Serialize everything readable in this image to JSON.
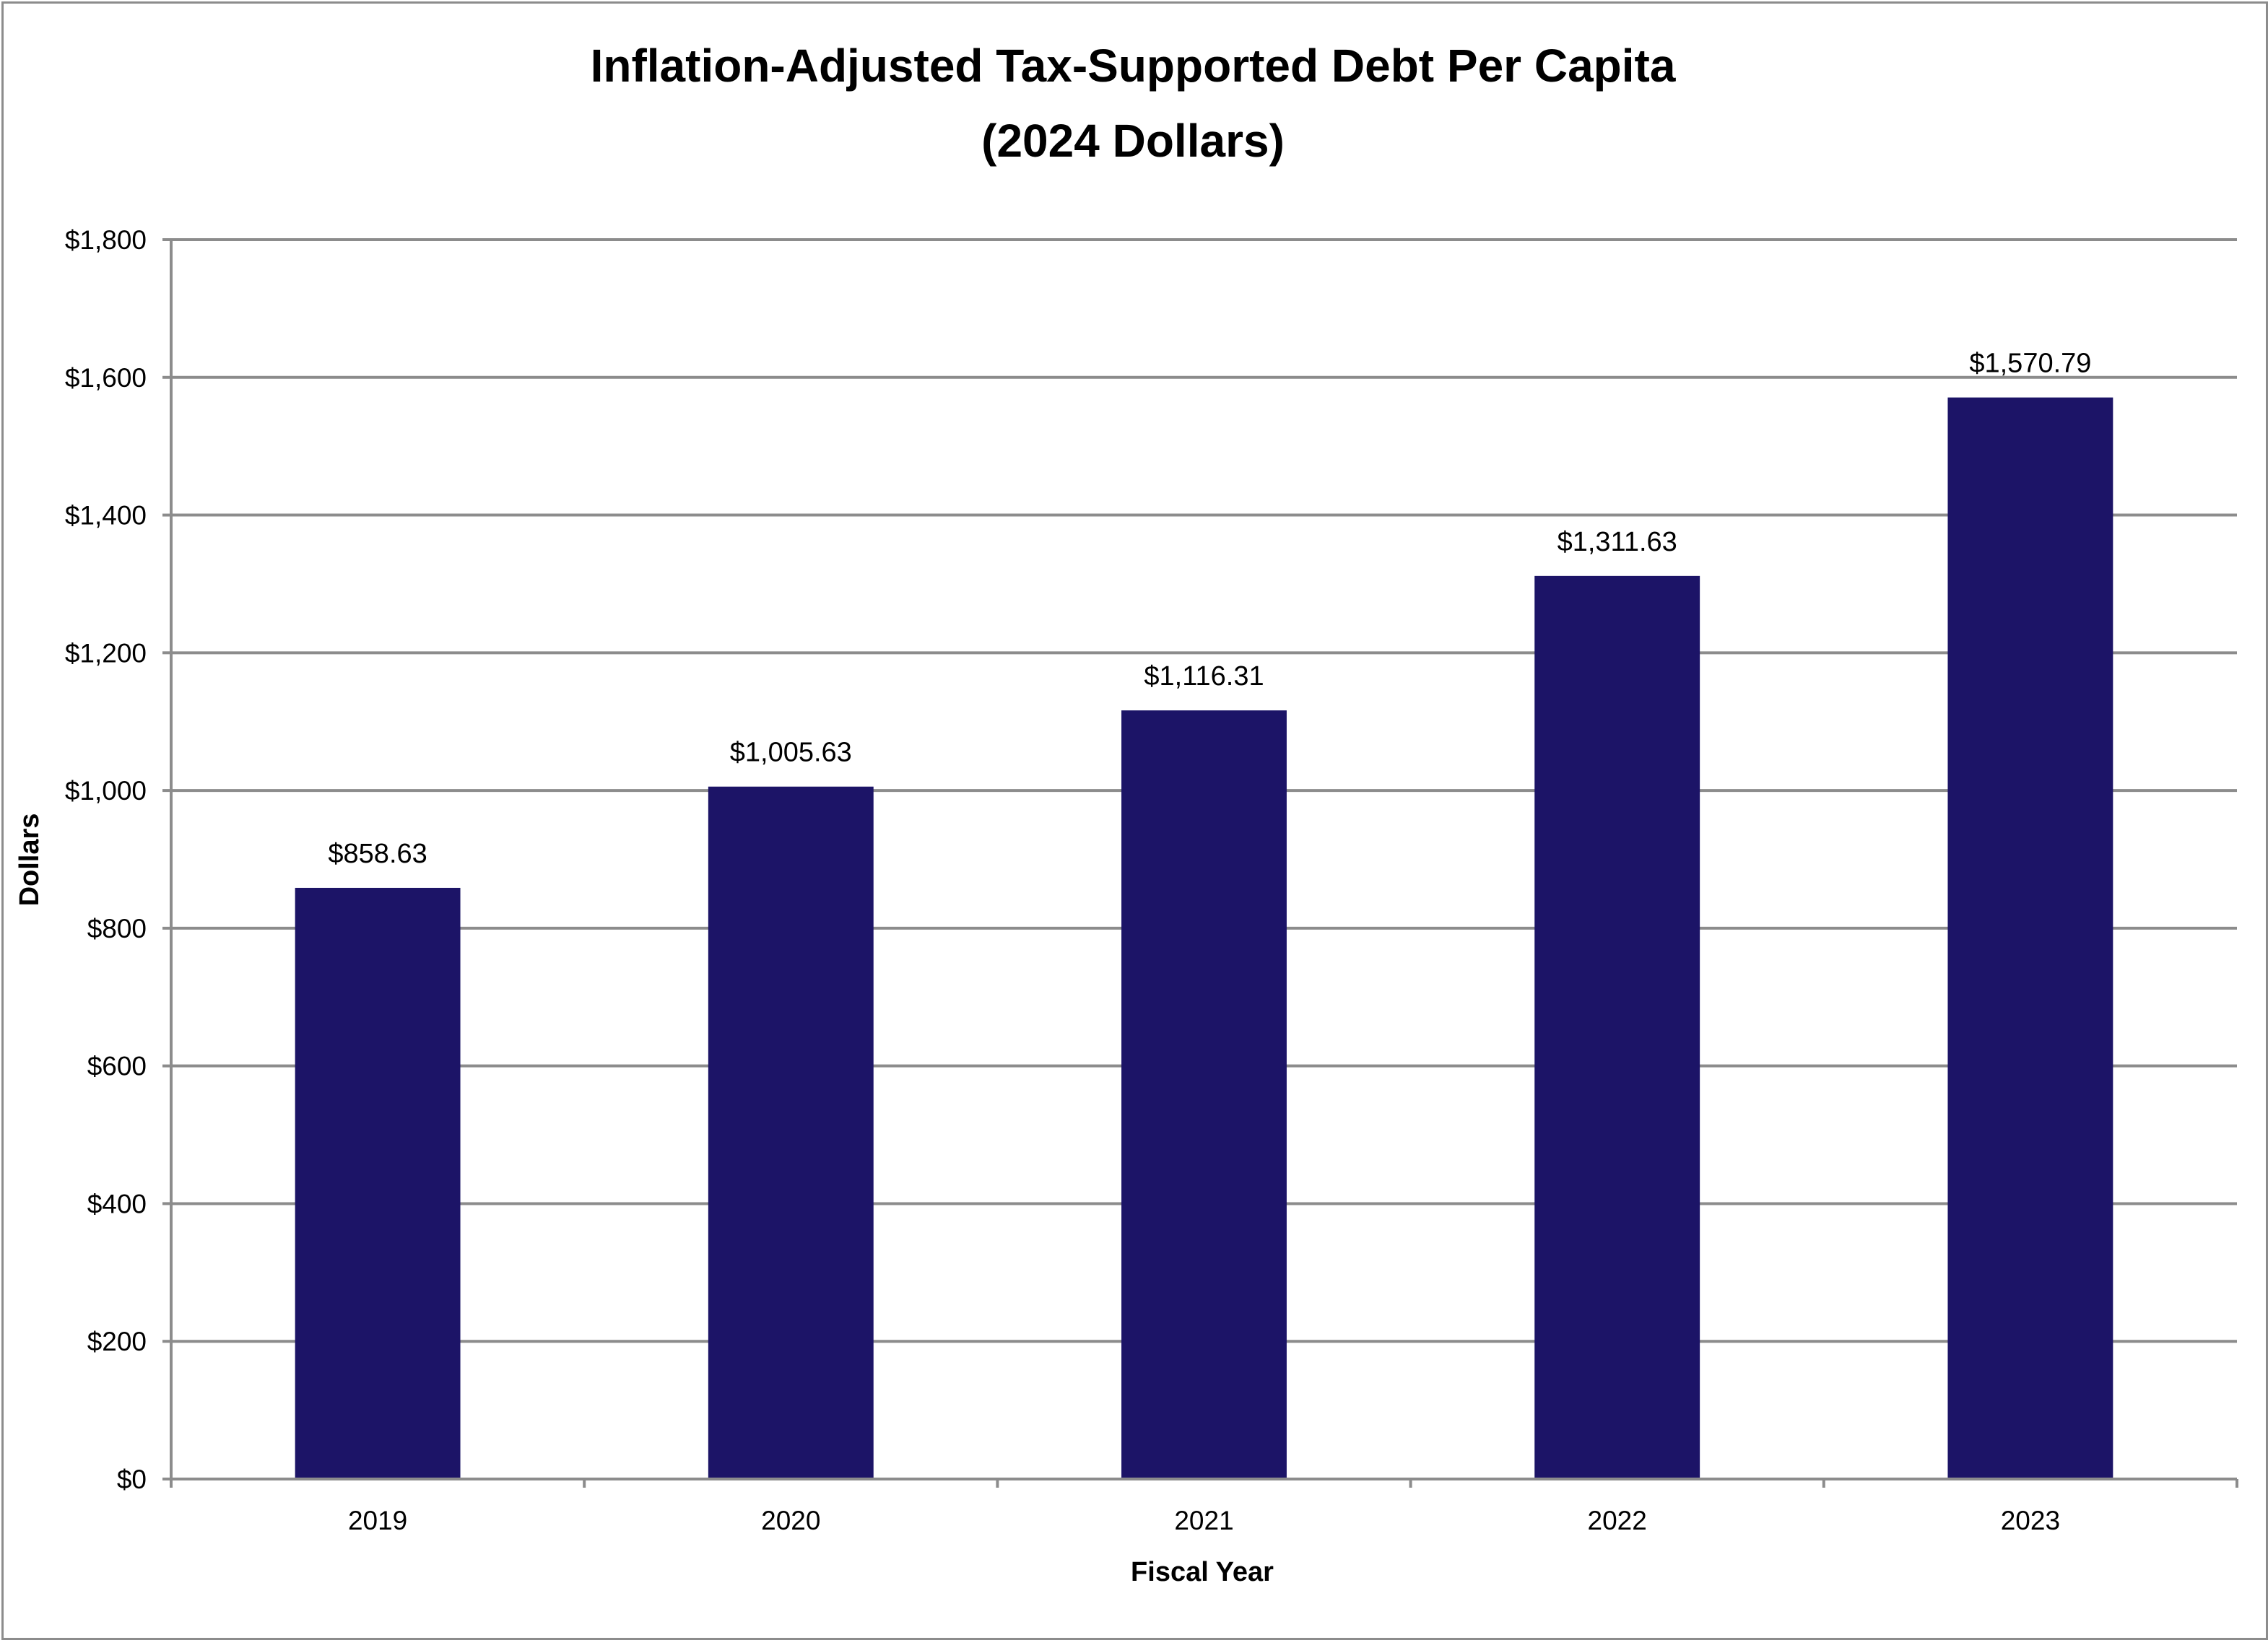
{
  "chart_data": {
    "type": "bar",
    "title": "Inflation-Adjusted Tax-Supported Debt Per Capita",
    "subtitle": "(2024 Dollars)",
    "xlabel": "Fiscal Year",
    "ylabel": "Dollars",
    "categories": [
      "2019",
      "2020",
      "2021",
      "2022",
      "2023"
    ],
    "values": [
      858.63,
      1005.63,
      1116.31,
      1311.63,
      1570.79
    ],
    "data_labels": [
      "$858.63",
      "$1,005.63",
      "$1,116.31",
      "$1,311.63",
      "$1,570.79"
    ],
    "ylim": [
      0,
      1800
    ],
    "y_ticks": [
      0,
      200,
      400,
      600,
      800,
      1000,
      1200,
      1400,
      1600,
      1800
    ],
    "y_tick_labels": [
      "$0",
      "$200",
      "$400",
      "$600",
      "$800",
      "$1,000",
      "$1,200",
      "$1,400",
      "$1,600",
      "$1,800"
    ],
    "grid": true,
    "legend": "none",
    "colors": {
      "bar": "#1c1467",
      "gridline": "#8c8c8c",
      "axis": "#8c8c8c",
      "border": "#8c8c8c"
    }
  }
}
